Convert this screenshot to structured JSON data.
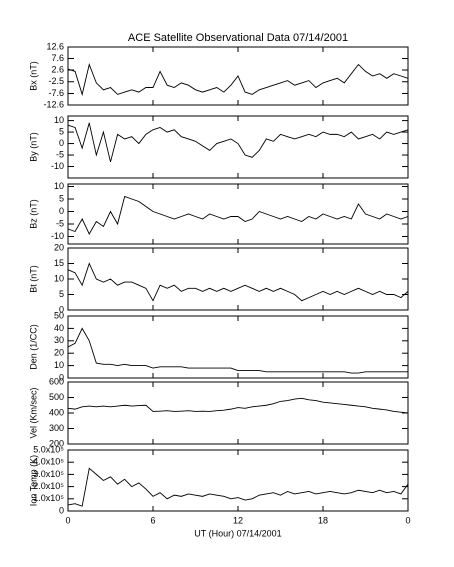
{
  "title": "ACE Satellite Observational Data  07/14/2001",
  "chart_data": [
    {
      "type": "line",
      "ylabel": "Bx (nT)",
      "ylim": [
        -12.6,
        12.6
      ],
      "yticks": [
        12.6,
        7.6,
        2.6,
        -2.5,
        -7.6,
        -12.6
      ],
      "x": [
        0,
        0.5,
        1,
        1.5,
        2,
        2.5,
        3,
        3.5,
        4,
        4.5,
        5,
        5.5,
        6,
        6.5,
        7,
        7.5,
        8,
        8.5,
        9,
        9.5,
        10,
        10.5,
        11,
        11.5,
        12,
        12.5,
        13,
        13.5,
        14,
        14.5,
        15,
        15.5,
        16,
        16.5,
        17,
        17.5,
        18,
        18.5,
        19,
        19.5,
        20,
        20.5,
        21,
        21.5,
        22,
        22.5,
        23,
        23.5,
        24
      ],
      "values": [
        3,
        2,
        -8,
        5,
        -3,
        -6,
        -5,
        -8,
        -7,
        -6,
        -7,
        -5,
        -5,
        2,
        -4,
        -5,
        -3,
        -4,
        -6,
        -7,
        -6,
        -5,
        -7,
        -4,
        0,
        -7,
        -8,
        -6,
        -5,
        -4,
        -3,
        -2,
        -4,
        -3,
        -2,
        -5,
        -3,
        -2,
        -1,
        -3,
        1,
        5,
        2,
        0,
        1,
        -1,
        1,
        0,
        -1
      ]
    },
    {
      "type": "line",
      "ylabel": "By (nT)",
      "ylim": [
        -15,
        12
      ],
      "yticks": [
        10,
        5,
        0,
        -5,
        -10
      ],
      "x": [
        0,
        0.5,
        1,
        1.5,
        2,
        2.5,
        3,
        3.5,
        4,
        4.5,
        5,
        5.5,
        6,
        6.5,
        7,
        7.5,
        8,
        8.5,
        9,
        9.5,
        10,
        10.5,
        11,
        11.5,
        12,
        12.5,
        13,
        13.5,
        14,
        14.5,
        15,
        15.5,
        16,
        16.5,
        17,
        17.5,
        18,
        18.5,
        19,
        19.5,
        20,
        20.5,
        21,
        21.5,
        22,
        22.5,
        23,
        23.5,
        24
      ],
      "values": [
        8,
        7,
        -2,
        9,
        -5,
        5,
        -8,
        4,
        2,
        3,
        0,
        4,
        6,
        7,
        5,
        6,
        3,
        2,
        1,
        -1,
        -3,
        0,
        1,
        2,
        0,
        -5,
        -6,
        -3,
        2,
        1,
        4,
        3,
        2,
        3,
        4,
        3,
        5,
        4,
        4,
        3,
        5,
        2,
        3,
        4,
        2,
        5,
        4,
        5,
        6
      ]
    },
    {
      "type": "line",
      "ylabel": "Bz (nT)",
      "ylim": [
        -13,
        11
      ],
      "yticks": [
        10,
        5,
        0,
        -5,
        -10
      ],
      "x": [
        0,
        0.5,
        1,
        1.5,
        2,
        2.5,
        3,
        3.5,
        4,
        4.5,
        5,
        5.5,
        6,
        6.5,
        7,
        7.5,
        8,
        8.5,
        9,
        9.5,
        10,
        10.5,
        11,
        11.5,
        12,
        12.5,
        13,
        13.5,
        14,
        14.5,
        15,
        15.5,
        16,
        16.5,
        17,
        17.5,
        18,
        18.5,
        19,
        19.5,
        20,
        20.5,
        21,
        21.5,
        22,
        22.5,
        23,
        23.5,
        24
      ],
      "values": [
        -7,
        -8,
        -3,
        -9,
        -4,
        -6,
        0,
        -5,
        6,
        5,
        4,
        2,
        0,
        -1,
        -2,
        -3,
        -2,
        -1,
        -2,
        -3,
        -1,
        -2,
        -3,
        -2,
        -2,
        -4,
        -3,
        0,
        -1,
        -2,
        -3,
        -2,
        -3,
        -4,
        -2,
        -3,
        -1,
        -2,
        -3,
        -2,
        -3,
        3,
        -1,
        -2,
        -3,
        -1,
        -2,
        -3,
        -2
      ]
    },
    {
      "type": "line",
      "ylabel": "Bt (nT)",
      "ylim": [
        0,
        20
      ],
      "yticks": [
        20,
        15,
        10,
        5,
        0
      ],
      "x": [
        0,
        0.5,
        1,
        1.5,
        2,
        2.5,
        3,
        3.5,
        4,
        4.5,
        5,
        5.5,
        6,
        6.5,
        7,
        7.5,
        8,
        8.5,
        9,
        9.5,
        10,
        10.5,
        11,
        11.5,
        12,
        12.5,
        13,
        13.5,
        14,
        14.5,
        15,
        15.5,
        16,
        16.5,
        17,
        17.5,
        18,
        18.5,
        19,
        19.5,
        20,
        20.5,
        21,
        21.5,
        22,
        22.5,
        23,
        23.5,
        24
      ],
      "values": [
        13,
        12,
        8,
        15,
        10,
        9,
        10,
        8,
        9,
        9,
        8,
        7,
        3,
        8,
        7,
        8,
        6,
        7,
        7,
        6,
        7,
        6,
        7,
        6,
        7,
        8,
        7,
        6,
        7,
        6,
        7,
        6,
        5,
        3,
        4,
        5,
        6,
        5,
        6,
        5,
        6,
        7,
        6,
        5,
        6,
        5,
        5,
        4,
        6
      ]
    },
    {
      "type": "line",
      "ylabel": "Den (1/CC)",
      "ylim": [
        0,
        50
      ],
      "yticks": [
        50,
        40,
        30,
        20,
        10,
        0
      ],
      "x": [
        0,
        0.5,
        1,
        1.5,
        2,
        2.5,
        3,
        3.5,
        4,
        4.5,
        5,
        5.5,
        6,
        6.5,
        7,
        7.5,
        8,
        8.5,
        9,
        9.5,
        10,
        10.5,
        11,
        11.5,
        12,
        12.5,
        13,
        13.5,
        14,
        14.5,
        15,
        15.5,
        16,
        16.5,
        17,
        17.5,
        18,
        18.5,
        19,
        19.5,
        20,
        20.5,
        21,
        21.5,
        22,
        22.5,
        23,
        23.5,
        24
      ],
      "values": [
        25,
        28,
        40,
        30,
        12,
        11,
        11,
        10,
        11,
        10,
        10,
        10,
        8,
        9,
        9,
        9,
        9,
        8,
        8,
        8,
        8,
        8,
        8,
        8,
        6,
        6,
        6,
        6,
        5,
        5,
        5,
        5,
        5,
        5,
        5,
        5,
        5,
        5,
        5,
        5,
        4,
        4,
        5,
        5,
        5,
        5,
        5,
        5,
        5
      ]
    },
    {
      "type": "line",
      "ylabel": "Vel (Km/sec)",
      "ylim": [
        200,
        600
      ],
      "yticks": [
        600,
        500,
        400,
        300,
        200
      ],
      "x": [
        0,
        0.5,
        1,
        1.5,
        2,
        2.5,
        3,
        3.5,
        4,
        4.5,
        5,
        5.5,
        6,
        6.5,
        7,
        7.5,
        8,
        8.5,
        9,
        9.5,
        10,
        10.5,
        11,
        11.5,
        12,
        12.5,
        13,
        13.5,
        14,
        14.5,
        15,
        15.5,
        16,
        16.5,
        17,
        17.5,
        18,
        18.5,
        19,
        19.5,
        20,
        20.5,
        21,
        21.5,
        22,
        22.5,
        23,
        23.5,
        24
      ],
      "values": [
        430,
        425,
        440,
        445,
        440,
        445,
        440,
        445,
        450,
        445,
        448,
        450,
        410,
        412,
        415,
        410,
        412,
        415,
        410,
        412,
        410,
        415,
        418,
        425,
        435,
        430,
        440,
        445,
        450,
        460,
        475,
        480,
        490,
        495,
        485,
        480,
        470,
        465,
        460,
        455,
        450,
        445,
        440,
        430,
        425,
        420,
        410,
        405,
        400
      ]
    },
    {
      "type": "line",
      "ylabel": "Ion Temp (K)",
      "ylim": [
        0,
        500000
      ],
      "yticks": [
        {
          "value": 500000,
          "label": "5.0x10⁵"
        },
        {
          "value": 400000,
          "label": "4.0x10⁵"
        },
        {
          "value": 300000,
          "label": "3.0x10⁵"
        },
        {
          "value": 200000,
          "label": "2.0x10⁵"
        },
        {
          "value": 100000,
          "label": "1.0x10⁵"
        },
        0
      ],
      "x": [
        0,
        0.5,
        1,
        1.5,
        2,
        2.5,
        3,
        3.5,
        4,
        4.5,
        5,
        5.5,
        6,
        6.5,
        7,
        7.5,
        8,
        8.5,
        9,
        9.5,
        10,
        10.5,
        11,
        11.5,
        12,
        12.5,
        13,
        13.5,
        14,
        14.5,
        15,
        15.5,
        16,
        16.5,
        17,
        17.5,
        18,
        18.5,
        19,
        19.5,
        20,
        20.5,
        21,
        21.5,
        22,
        22.5,
        23,
        23.5,
        24
      ],
      "values": [
        50000,
        60000,
        40000,
        350000,
        300000,
        250000,
        280000,
        220000,
        260000,
        200000,
        230000,
        180000,
        120000,
        150000,
        100000,
        130000,
        120000,
        140000,
        130000,
        120000,
        140000,
        130000,
        120000,
        100000,
        110000,
        90000,
        100000,
        130000,
        140000,
        150000,
        130000,
        160000,
        140000,
        150000,
        160000,
        140000,
        150000,
        160000,
        150000,
        140000,
        150000,
        170000,
        160000,
        150000,
        170000,
        150000,
        160000,
        140000,
        220000
      ],
      "xlabel": "UT (Hour)  07/14/2001",
      "xlim": [
        0,
        24
      ],
      "xticks": [
        0,
        6,
        12,
        18,
        {
          "value": 24,
          "label": "0"
        }
      ]
    }
  ]
}
